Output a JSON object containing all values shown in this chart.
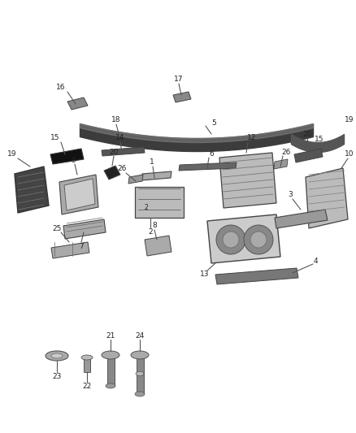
{
  "bg_color": "#ffffff",
  "fig_width": 4.38,
  "fig_height": 5.33,
  "dpi": 100,
  "label_fontsize": 6.5,
  "label_color": "#222222",
  "line_color": "#555555",
  "part_dark": "#3a3a3a",
  "part_mid": "#888888",
  "part_light": "#cccccc",
  "part_outline": "#444444"
}
